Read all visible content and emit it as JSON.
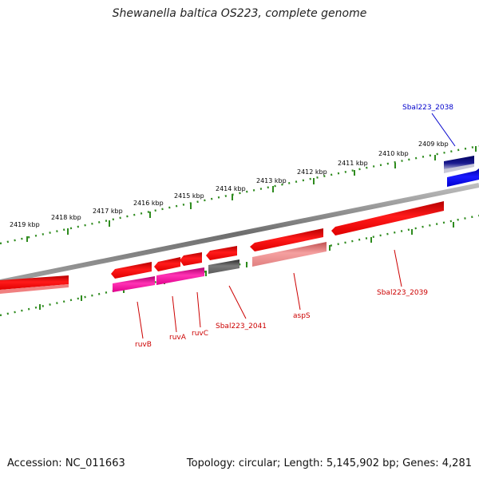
{
  "title": "Shewanella baltica OS223, complete genome",
  "scale_labels": [
    "2419 kbp",
    "2418 kbp",
    "2417 kbp",
    "2416 kbp",
    "2415 kbp",
    "2414 kbp",
    "2413 kbp",
    "2412 kbp",
    "2411 kbp",
    "2410 kbp",
    "2409 kbp"
  ],
  "genes": {
    "ruvB": "ruvB",
    "ruvA": "ruvA",
    "ruvC": "ruvC",
    "sbal_2041": "Sbal223_2041",
    "aspS": "aspS",
    "sbal_2039": "Sbal223_2039",
    "sbal_2038": "Sbal223_2038"
  },
  "footer": {
    "accession": "Accession: NC_011663",
    "topology": "Topology: circular; Length: 5,145,902 bp; Genes: 4,281"
  },
  "colors": {
    "scale_track": "#2e8b1e",
    "gene_forward": "#ff0000",
    "gene_label": "#cc0000",
    "highlight_gene": "#0000ff"
  }
}
